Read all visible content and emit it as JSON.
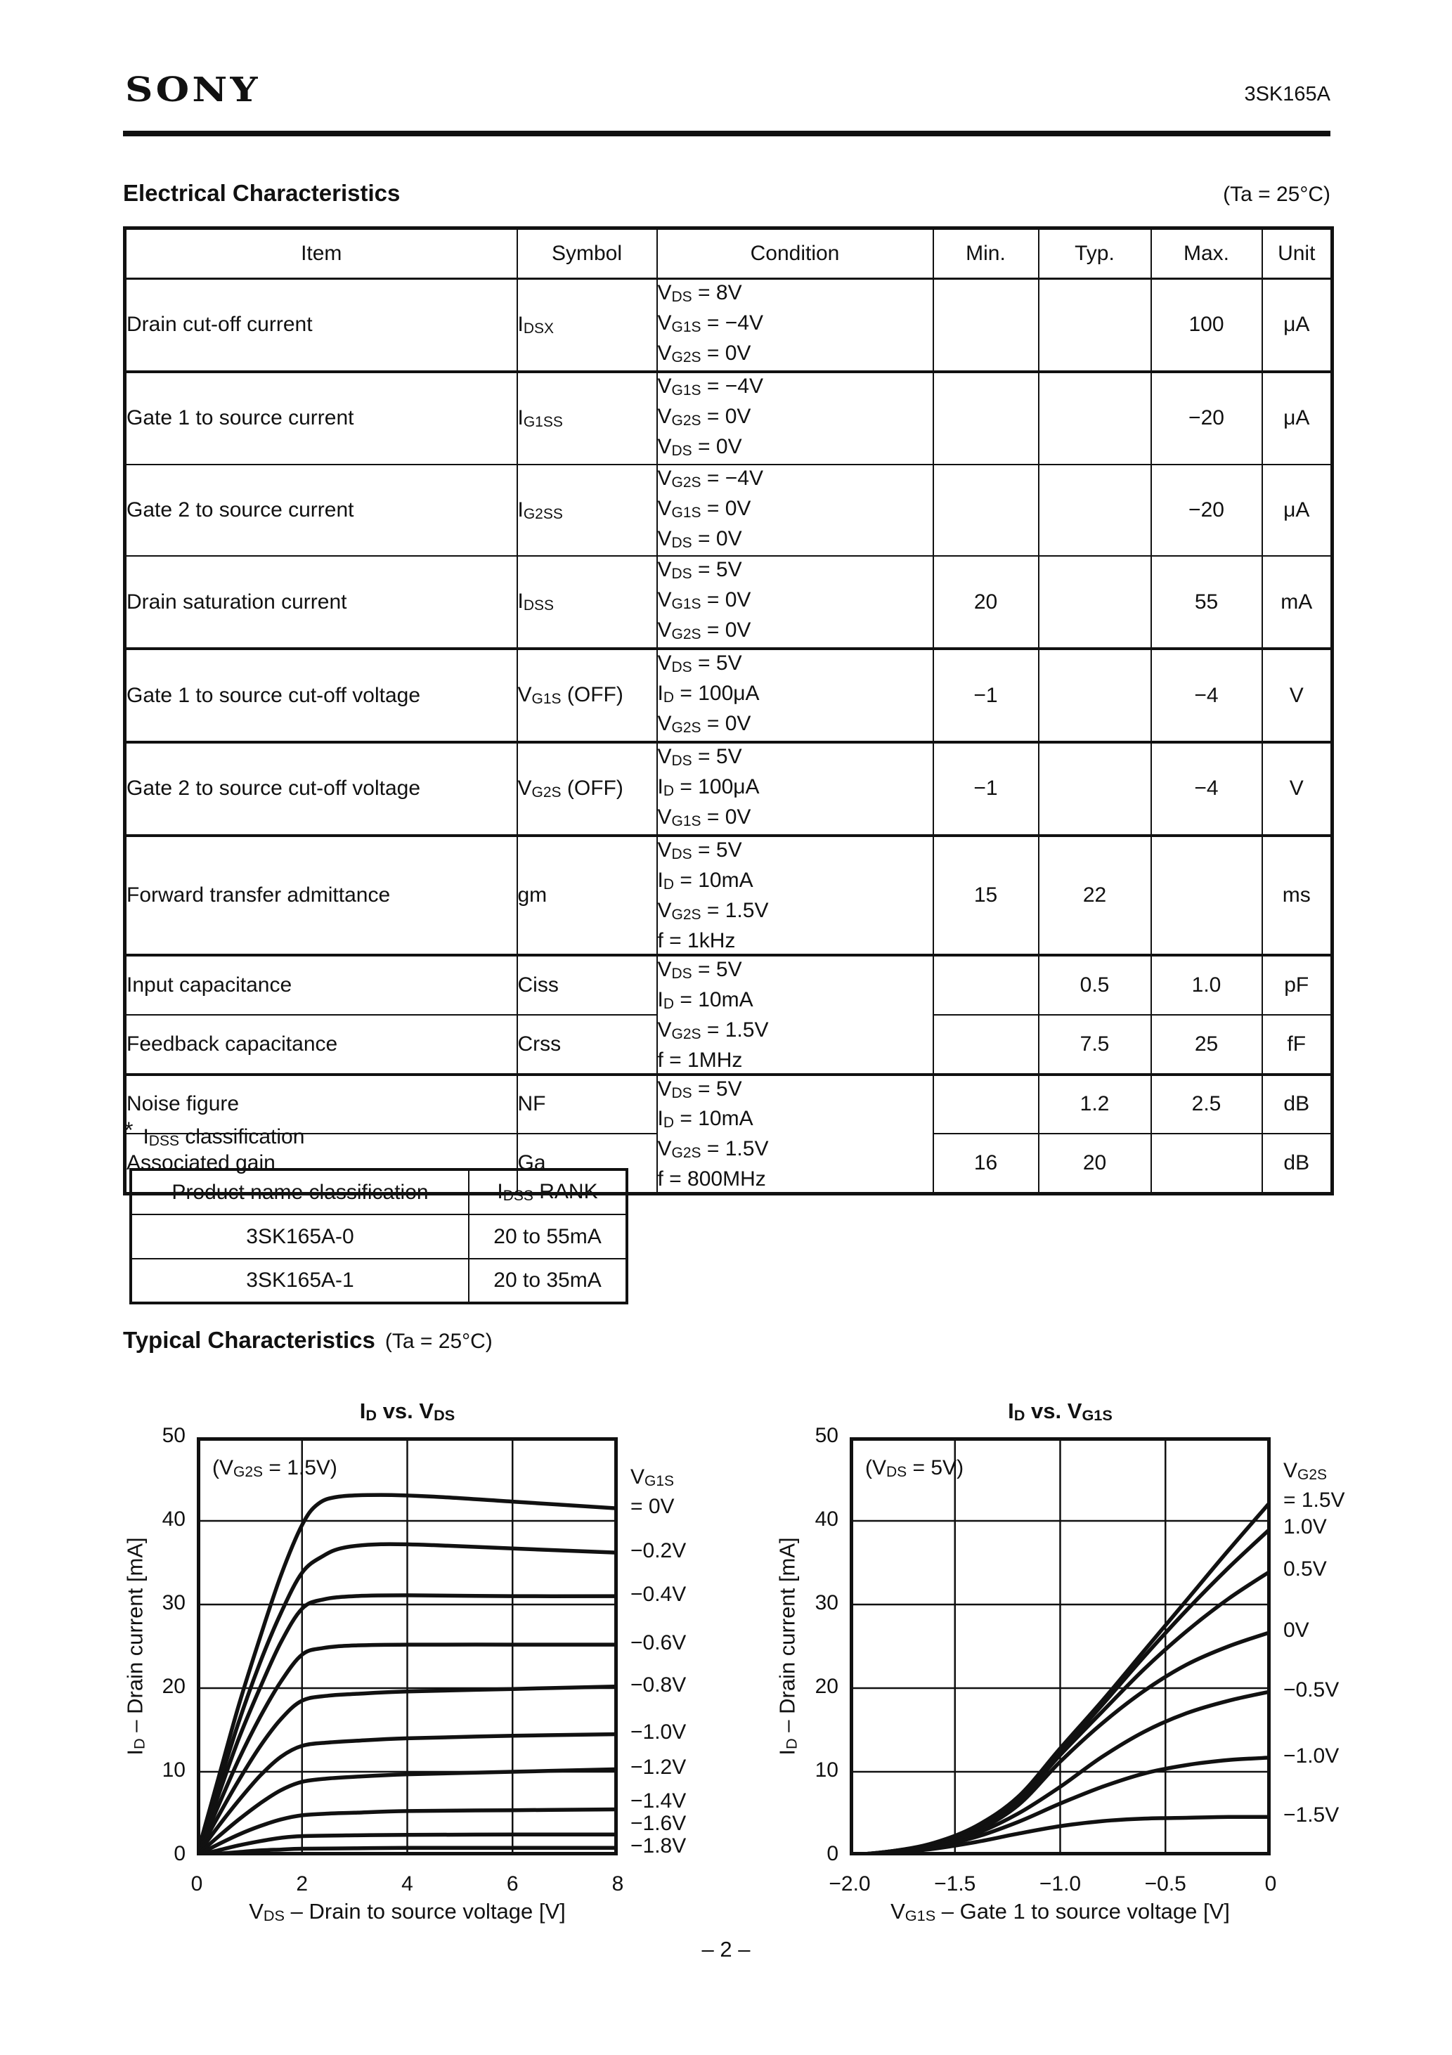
{
  "page": {
    "logo": "SONY",
    "part_number": "3SK165A",
    "footer": "– 2 –"
  },
  "electrical": {
    "title": "Electrical Characteristics",
    "temp_note": "(Ta = 25°C)",
    "table": {
      "headers": [
        "Item",
        "Symbol",
        "Condition",
        "Min.",
        "Typ.",
        "Max.",
        "Unit"
      ],
      "rows": [
        {
          "item": "Drain cut-off current",
          "symbol": "I~DSX~",
          "condition": [
            "V~DS~ = 8V",
            "V~G1S~ = −4V",
            "V~G2S~ = 0V"
          ],
          "min": "",
          "typ": "",
          "max": "100",
          "unit": "μA"
        },
        {
          "item": "Gate 1 to source current",
          "symbol": "I~G1SS~",
          "condition": [
            "V~G1S~ = −4V",
            "V~G2S~ = 0V",
            "V~DS~ = 0V"
          ],
          "min": "",
          "typ": "",
          "max": "−20",
          "unit": "μA"
        },
        {
          "item": "Gate 2 to source current",
          "symbol": "I~G2SS~",
          "condition": [
            "V~G2S~ = −4V",
            "V~G1S~ = 0V",
            "V~DS~ = 0V"
          ],
          "min": "",
          "typ": "",
          "max": "−20",
          "unit": "μA"
        },
        {
          "item": "Drain saturation current",
          "symbol": "I~DSS~",
          "condition": [
            "V~DS~ = 5V",
            "V~G1S~ = 0V",
            "V~G2S~ = 0V"
          ],
          "min": "20",
          "typ": "",
          "max": "55",
          "unit": "mA"
        },
        {
          "item": "Gate 1 to source cut-off voltage",
          "symbol": "V~G1S~ (OFF)",
          "condition": [
            "V~DS~ = 5V",
            "I~D~ = 100μA",
            "V~G2S~ = 0V"
          ],
          "min": "−1",
          "typ": "",
          "max": "−4",
          "unit": "V"
        },
        {
          "item": "Gate 2 to source cut-off voltage",
          "symbol": "V~G2S~ (OFF)",
          "condition": [
            "V~DS~ = 5V",
            "I~D~ = 100μA",
            "V~G1S~ = 0V"
          ],
          "min": "−1",
          "typ": "",
          "max": "−4",
          "unit": "V"
        },
        {
          "item": "Forward transfer admittance",
          "symbol": "gm",
          "condition": [
            "V~DS~ = 5V",
            "I~D~ = 10mA",
            "V~G2S~ = 1.5V",
            "f = 1kHz"
          ],
          "min": "15",
          "typ": "22",
          "max": "",
          "unit": "ms"
        },
        {
          "item": "Input capacitance",
          "symbol": "Ciss",
          "min": "",
          "typ": "0.5",
          "max": "1.0",
          "unit": "pF"
        },
        {
          "item": "Feedback capacitance",
          "symbol": "Crss",
          "min": "",
          "typ": "7.5",
          "max": "25",
          "unit": "fF"
        },
        {
          "item": "Noise figure",
          "symbol": "NF",
          "min": "",
          "typ": "1.2",
          "max": "2.5",
          "unit": "dB"
        },
        {
          "item": "Associated gain",
          "symbol": "Ga",
          "min": "16",
          "typ": "20",
          "max": "",
          "unit": "dB"
        }
      ],
      "shared_conditions": {
        "cap": [
          "V~DS~ = 5V",
          "I~D~ = 10mA",
          "V~G2S~ = 1.5V",
          "f = 1MHz"
        ],
        "nf": [
          "V~DS~ = 5V",
          "I~D~ = 10mA",
          "V~G2S~ = 1.5V",
          "f = 800MHz"
        ]
      }
    }
  },
  "classification": {
    "note_marker": "*",
    "note": "I~DSS~ classification",
    "table": {
      "headers": [
        "Product name classification",
        "I~DSS~ RANK"
      ],
      "rows": [
        {
          "name": "3SK165A-0",
          "rank": "20 to 55mA"
        },
        {
          "name": "3SK165A-1",
          "rank": "20 to 35mA"
        }
      ]
    }
  },
  "typical": {
    "title": "Typical Characteristics",
    "temp_note": "(Ta = 25°C)"
  },
  "chart_data": [
    {
      "type": "line",
      "title": "I~D~ vs. V~DS~",
      "annotation": "(V~G2S~ = 1.5V)",
      "xlabel": "V~DS~ – Drain to source voltage [V]",
      "ylabel": "I~D~ – Drain current [mA]",
      "xlim": [
        0,
        8
      ],
      "ylim": [
        0,
        50
      ],
      "xticks": [
        0,
        2,
        4,
        6,
        8
      ],
      "xtick_labels": [
        "0",
        "2",
        "4",
        "6",
        "8"
      ],
      "yticks": [
        0,
        10,
        20,
        30,
        40,
        50
      ],
      "grid_x": [
        2,
        4,
        6
      ],
      "grid_y": [
        10,
        20,
        30,
        40
      ],
      "grid": "on",
      "legend_position": "right",
      "legend_header": "V~G1S~",
      "series": [
        {
          "name": "= 0V",
          "points": [
            [
              0,
              0
            ],
            [
              0.4,
              9
            ],
            [
              0.8,
              18
            ],
            [
              1.2,
              26
            ],
            [
              1.6,
              33.5
            ],
            [
              2.0,
              39.5
            ],
            [
              2.3,
              42
            ],
            [
              2.7,
              42.9
            ],
            [
              3.5,
              43.1
            ],
            [
              4.5,
              42.9
            ],
            [
              6,
              42.3
            ],
            [
              8,
              41.5
            ]
          ]
        },
        {
          "name": "−0.2V",
          "points": [
            [
              0,
              0
            ],
            [
              0.4,
              8
            ],
            [
              0.8,
              16
            ],
            [
              1.2,
              23
            ],
            [
              1.6,
              29
            ],
            [
              2.0,
              33.8
            ],
            [
              2.4,
              35.8
            ],
            [
              2.8,
              36.8
            ],
            [
              3.5,
              37.2
            ],
            [
              4.5,
              37.1
            ],
            [
              6,
              36.7
            ],
            [
              8,
              36.2
            ]
          ]
        },
        {
          "name": "−0.4V",
          "points": [
            [
              0,
              0
            ],
            [
              0.4,
              7
            ],
            [
              0.8,
              14
            ],
            [
              1.2,
              20
            ],
            [
              1.6,
              25.5
            ],
            [
              2.0,
              29.5
            ],
            [
              2.4,
              30.6
            ],
            [
              3,
              31
            ],
            [
              4,
              31.1
            ],
            [
              6,
              31
            ],
            [
              8,
              31
            ]
          ]
        },
        {
          "name": "−0.6V",
          "points": [
            [
              0,
              0
            ],
            [
              0.4,
              5.8
            ],
            [
              0.8,
              11.5
            ],
            [
              1.2,
              16.5
            ],
            [
              1.6,
              20.8
            ],
            [
              2.0,
              24
            ],
            [
              2.4,
              24.8
            ],
            [
              3,
              25.1
            ],
            [
              4,
              25.2
            ],
            [
              6,
              25.2
            ],
            [
              8,
              25.2
            ]
          ]
        },
        {
          "name": "−0.8V",
          "points": [
            [
              0,
              0
            ],
            [
              0.4,
              4.6
            ],
            [
              0.8,
              9
            ],
            [
              1.2,
              13
            ],
            [
              1.6,
              16.3
            ],
            [
              2.0,
              18.5
            ],
            [
              2.5,
              19.1
            ],
            [
              3,
              19.3
            ],
            [
              4,
              19.6
            ],
            [
              6,
              19.9
            ],
            [
              8,
              20.2
            ]
          ]
        },
        {
          "name": "−1.0V",
          "points": [
            [
              0,
              0
            ],
            [
              0.4,
              3.4
            ],
            [
              0.8,
              6.6
            ],
            [
              1.2,
              9.5
            ],
            [
              1.6,
              11.8
            ],
            [
              2.0,
              13.1
            ],
            [
              2.5,
              13.5
            ],
            [
              3,
              13.7
            ],
            [
              4,
              14
            ],
            [
              6,
              14.3
            ],
            [
              8,
              14.5
            ]
          ]
        },
        {
          "name": "−1.2V",
          "points": [
            [
              0,
              0
            ],
            [
              0.4,
              2.2
            ],
            [
              0.8,
              4.3
            ],
            [
              1.2,
              6.2
            ],
            [
              1.6,
              7.8
            ],
            [
              2.0,
              8.8
            ],
            [
              2.5,
              9.2
            ],
            [
              3,
              9.4
            ],
            [
              4,
              9.7
            ],
            [
              6,
              10
            ],
            [
              8,
              10.3
            ]
          ]
        },
        {
          "name": "−1.4V",
          "points": [
            [
              0,
              0
            ],
            [
              0.4,
              1.3
            ],
            [
              0.8,
              2.5
            ],
            [
              1.2,
              3.5
            ],
            [
              1.6,
              4.3
            ],
            [
              2.0,
              4.8
            ],
            [
              2.5,
              5
            ],
            [
              3,
              5.1
            ],
            [
              4,
              5.3
            ],
            [
              6,
              5.4
            ],
            [
              8,
              5.5
            ]
          ]
        },
        {
          "name": "−1.6V",
          "points": [
            [
              0,
              0
            ],
            [
              0.4,
              0.6
            ],
            [
              0.8,
              1.2
            ],
            [
              1.2,
              1.7
            ],
            [
              1.6,
              2.1
            ],
            [
              2.0,
              2.3
            ],
            [
              3,
              2.4
            ],
            [
              4,
              2.45
            ],
            [
              6,
              2.5
            ],
            [
              8,
              2.5
            ]
          ]
        },
        {
          "name": "−1.8V",
          "points": [
            [
              0,
              0
            ],
            [
              0.4,
              0.2
            ],
            [
              0.8,
              0.4
            ],
            [
              1.2,
              0.6
            ],
            [
              1.6,
              0.7
            ],
            [
              2.0,
              0.8
            ],
            [
              3,
              0.85
            ],
            [
              4,
              0.9
            ],
            [
              6,
              0.9
            ],
            [
              8,
              0.9
            ]
          ]
        }
      ]
    },
    {
      "type": "line",
      "title": "I~D~ vs. V~G1S~",
      "annotation": "(V~DS~ = 5V)",
      "xlabel": "V~G1S~ – Gate 1 to source voltage [V]",
      "ylabel": "I~D~ – Drain current [mA]",
      "xlim": [
        -2,
        0
      ],
      "ylim": [
        0,
        50
      ],
      "xticks": [
        -2,
        -1.5,
        -1,
        -0.5,
        0
      ],
      "xtick_labels": [
        "−2.0",
        "−1.5",
        "−1.0",
        "−0.5",
        "0"
      ],
      "yticks": [
        0,
        10,
        20,
        30,
        40,
        50
      ],
      "grid_x": [
        -1.5,
        -1,
        -0.5
      ],
      "grid_y": [
        10,
        20,
        30,
        40
      ],
      "grid": "on",
      "legend_position": "right",
      "legend_header": "V~G2S~",
      "series": [
        {
          "name": "= 1.5V",
          "points": [
            [
              -2,
              0
            ],
            [
              -1.8,
              0.5
            ],
            [
              -1.6,
              1.5
            ],
            [
              -1.4,
              3.5
            ],
            [
              -1.2,
              7
            ],
            [
              -1.0,
              12.8
            ],
            [
              -0.8,
              18.5
            ],
            [
              -0.6,
              24.5
            ],
            [
              -0.4,
              30.5
            ],
            [
              -0.2,
              36.5
            ],
            [
              0,
              42.3
            ]
          ]
        },
        {
          "name": "1.0V",
          "points": [
            [
              -2,
              0
            ],
            [
              -1.8,
              0.5
            ],
            [
              -1.6,
              1.4
            ],
            [
              -1.4,
              3.3
            ],
            [
              -1.2,
              6.8
            ],
            [
              -1.0,
              12.4
            ],
            [
              -0.8,
              18
            ],
            [
              -0.6,
              23.8
            ],
            [
              -0.4,
              29.3
            ],
            [
              -0.2,
              34.4
            ],
            [
              0,
              39.1
            ]
          ]
        },
        {
          "name": "0.5V",
          "points": [
            [
              -2,
              0
            ],
            [
              -1.8,
              0.5
            ],
            [
              -1.6,
              1.3
            ],
            [
              -1.4,
              3.1
            ],
            [
              -1.2,
              6.5
            ],
            [
              -1.0,
              12
            ],
            [
              -0.8,
              17.2
            ],
            [
              -0.6,
              22.3
            ],
            [
              -0.4,
              26.8
            ],
            [
              -0.2,
              30.7
            ],
            [
              0,
              34
            ]
          ]
        },
        {
          "name": "0V",
          "points": [
            [
              -2,
              0
            ],
            [
              -1.8,
              0.4
            ],
            [
              -1.6,
              1.2
            ],
            [
              -1.4,
              2.9
            ],
            [
              -1.2,
              6
            ],
            [
              -1.0,
              11.2
            ],
            [
              -0.8,
              15.8
            ],
            [
              -0.6,
              19.7
            ],
            [
              -0.4,
              22.8
            ],
            [
              -0.2,
              25
            ],
            [
              0,
              26.7
            ]
          ]
        },
        {
          "name": "−0.5V",
          "points": [
            [
              -2,
              0
            ],
            [
              -1.8,
              0.4
            ],
            [
              -1.6,
              1.1
            ],
            [
              -1.4,
              2.6
            ],
            [
              -1.2,
              5
            ],
            [
              -1.0,
              8.2
            ],
            [
              -0.8,
              11.8
            ],
            [
              -0.6,
              14.8
            ],
            [
              -0.4,
              17
            ],
            [
              -0.2,
              18.5
            ],
            [
              0,
              19.6
            ]
          ]
        },
        {
          "name": "−1.0V",
          "points": [
            [
              -2,
              0
            ],
            [
              -1.8,
              0.3
            ],
            [
              -1.6,
              1
            ],
            [
              -1.4,
              2.2
            ],
            [
              -1.2,
              4
            ],
            [
              -1.0,
              6.2
            ],
            [
              -0.8,
              8.2
            ],
            [
              -0.6,
              9.8
            ],
            [
              -0.4,
              10.8
            ],
            [
              -0.2,
              11.4
            ],
            [
              0,
              11.7
            ]
          ]
        },
        {
          "name": "−1.5V",
          "points": [
            [
              -2,
              0
            ],
            [
              -1.8,
              0.3
            ],
            [
              -1.6,
              0.8
            ],
            [
              -1.4,
              1.6
            ],
            [
              -1.2,
              2.6
            ],
            [
              -1.0,
              3.5
            ],
            [
              -0.8,
              4.1
            ],
            [
              -0.6,
              4.4
            ],
            [
              -0.4,
              4.5
            ],
            [
              -0.2,
              4.6
            ],
            [
              0,
              4.6
            ]
          ]
        }
      ]
    }
  ]
}
